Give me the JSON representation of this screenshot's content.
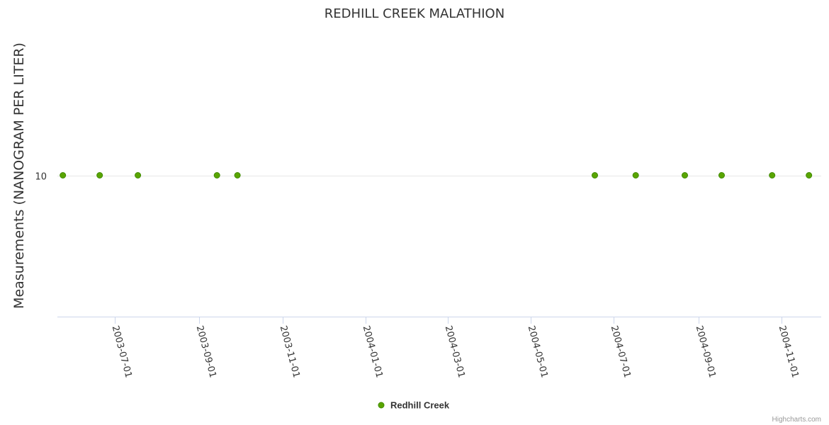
{
  "chart_data": {
    "type": "scatter",
    "title": "REDHILL CREEK MALATHION",
    "ylabel": "Measurements (NANOGRAM PER LITER)",
    "xlabel": "",
    "x_type": "datetime",
    "xlim": [
      "2003-05-20",
      "2004-11-30"
    ],
    "ylim_log": [
      1,
      100
    ],
    "y_ticks": [
      10
    ],
    "y_tick_labels": [
      "10"
    ],
    "x_ticks": [
      "2003-07-01",
      "2003-09-01",
      "2003-11-01",
      "2004-01-01",
      "2004-03-01",
      "2004-05-01",
      "2004-07-01",
      "2004-09-01",
      "2004-11-01"
    ],
    "series": [
      {
        "name": "Redhill Creek",
        "color": "#5aa500",
        "points": [
          {
            "x": "2003-05-24",
            "y": 10
          },
          {
            "x": "2003-06-20",
            "y": 10
          },
          {
            "x": "2003-07-18",
            "y": 10
          },
          {
            "x": "2003-09-14",
            "y": 10
          },
          {
            "x": "2003-09-29",
            "y": 10
          },
          {
            "x": "2004-06-17",
            "y": 10
          },
          {
            "x": "2004-07-17",
            "y": 10
          },
          {
            "x": "2004-08-22",
            "y": 10
          },
          {
            "x": "2004-09-18",
            "y": 10
          },
          {
            "x": "2004-10-25",
            "y": 10
          },
          {
            "x": "2004-11-21",
            "y": 10
          }
        ]
      }
    ],
    "legend_position": "bottom-center"
  },
  "credits": "Highcharts.com"
}
